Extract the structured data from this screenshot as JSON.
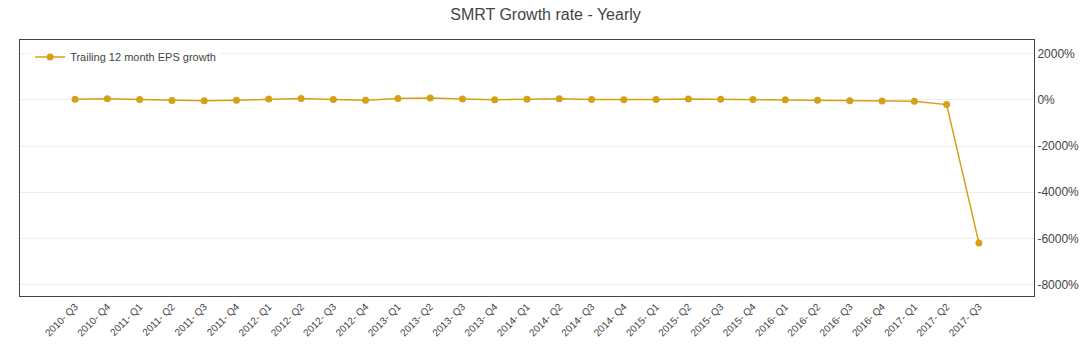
{
  "chart_data": {
    "type": "line",
    "title": "SMRT Growth rate - Yearly",
    "categories": [
      "2010- Q3",
      "2010- Q4",
      "2011- Q1",
      "2011- Q2",
      "2011- Q3",
      "2011- Q4",
      "2012- Q1",
      "2012- Q2",
      "2012- Q3",
      "2012- Q4",
      "2013- Q1",
      "2013- Q2",
      "2013- Q3",
      "2013- Q4",
      "2014- Q1",
      "2014- Q2",
      "2014- Q3",
      "2014- Q4",
      "2015- Q1",
      "2015- Q2",
      "2015- Q3",
      "2015- Q4",
      "2016- Q1",
      "2016- Q2",
      "2016- Q3",
      "2016- Q4",
      "2017- Q1",
      "2017- Q2",
      "2017- Q3"
    ],
    "series": [
      {
        "name": "Trailing 12 month EPS growth",
        "color": "#D4A017",
        "marker": "circle",
        "values": [
          30,
          50,
          20,
          -20,
          -30,
          -10,
          40,
          60,
          20,
          -10,
          60,
          80,
          40,
          10,
          30,
          50,
          20,
          10,
          20,
          40,
          30,
          20,
          10,
          -10,
          -30,
          -40,
          -60,
          -200,
          -6200
        ]
      }
    ],
    "ylim": [
      -8500,
      2600
    ],
    "yticks": [
      {
        "value": -8000,
        "label": "-8000%"
      },
      {
        "value": -6000,
        "label": "-6000%"
      },
      {
        "value": -4000,
        "label": "-4000%"
      },
      {
        "value": -2000,
        "label": "-2000%"
      },
      {
        "value": 0,
        "label": "0%"
      },
      {
        "value": 2000,
        "label": "2000%"
      }
    ],
    "grid": true,
    "legend": "upper left"
  }
}
